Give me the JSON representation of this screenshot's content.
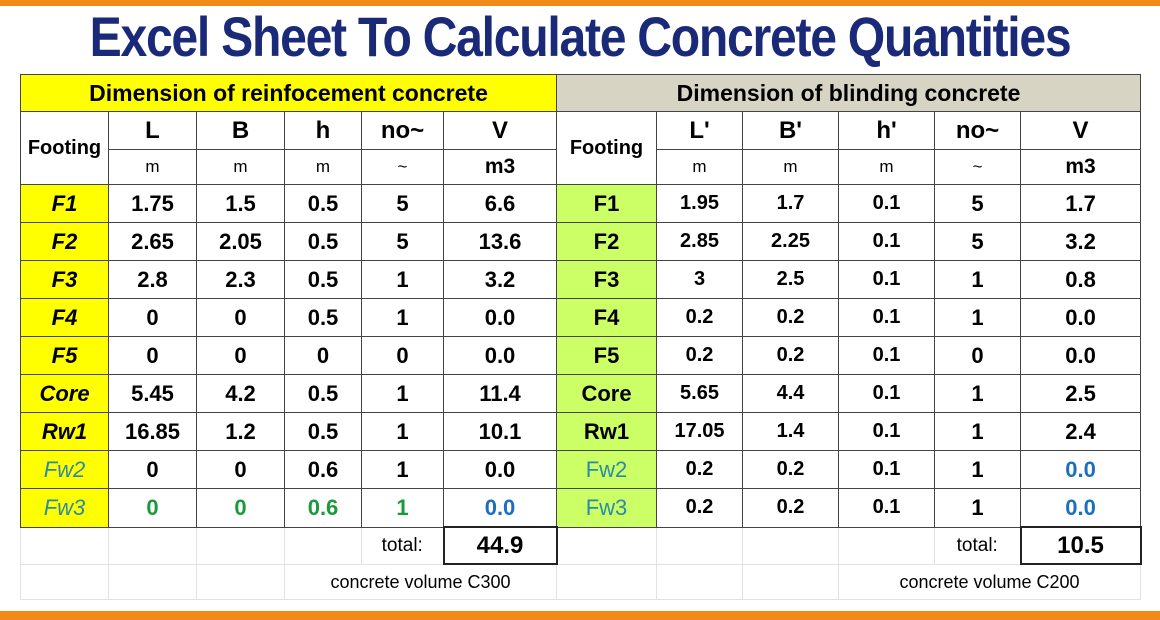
{
  "title": "Excel Sheet To Calculate Concrete Quantities",
  "left_table": {
    "header": "Dimension of reinfocement concrete",
    "row_label_header": "Footing",
    "columns": [
      "L",
      "B",
      "h",
      "no~",
      "V"
    ],
    "units": [
      "m",
      "m",
      "m",
      "~",
      "m3"
    ],
    "rows": [
      {
        "label": "F1",
        "values": [
          "1.75",
          "1.5",
          "0.5",
          "5",
          "6.6"
        ]
      },
      {
        "label": "F2",
        "values": [
          "2.65",
          "2.05",
          "0.5",
          "5",
          "13.6"
        ]
      },
      {
        "label": "F3",
        "values": [
          "2.8",
          "2.3",
          "0.5",
          "1",
          "3.2"
        ]
      },
      {
        "label": "F4",
        "values": [
          "0",
          "0",
          "0.5",
          "1",
          "0.0"
        ]
      },
      {
        "label": "F5",
        "values": [
          "0",
          "0",
          "0",
          "0",
          "0.0"
        ]
      },
      {
        "label": "Core",
        "values": [
          "5.45",
          "4.2",
          "0.5",
          "1",
          "11.4"
        ]
      },
      {
        "label": "Rw1",
        "values": [
          "16.85",
          "1.2",
          "0.5",
          "1",
          "10.1"
        ]
      },
      {
        "label": "Fw2",
        "values": [
          "0",
          "0",
          "0.6",
          "1",
          "0.0"
        ]
      },
      {
        "label": "Fw3",
        "values": [
          "0",
          "0",
          "0.6",
          "1",
          "0.0"
        ]
      }
    ],
    "total_label": "total:",
    "total_value": "44.9",
    "note": "concrete volume C300",
    "header_color": "#ffff00"
  },
  "right_table": {
    "header": "Dimension of  blinding concrete",
    "row_label_header": "Footing",
    "columns": [
      "L'",
      "B'",
      "h'",
      "no~",
      "V"
    ],
    "units": [
      "m",
      "m",
      "m",
      "~",
      "m3"
    ],
    "rows": [
      {
        "label": "F1",
        "values": [
          "1.95",
          "1.7",
          "0.1",
          "5",
          "1.7"
        ]
      },
      {
        "label": "F2",
        "values": [
          "2.85",
          "2.25",
          "0.1",
          "5",
          "3.2"
        ]
      },
      {
        "label": "F3",
        "values": [
          "3",
          "2.5",
          "0.1",
          "1",
          "0.8"
        ]
      },
      {
        "label": "F4",
        "values": [
          "0.2",
          "0.2",
          "0.1",
          "1",
          "0.0"
        ]
      },
      {
        "label": "F5",
        "values": [
          "0.2",
          "0.2",
          "0.1",
          "0",
          "0.0"
        ]
      },
      {
        "label": "Core",
        "values": [
          "5.65",
          "4.4",
          "0.1",
          "1",
          "2.5"
        ]
      },
      {
        "label": "Rw1",
        "values": [
          "17.05",
          "1.4",
          "0.1",
          "1",
          "2.4"
        ]
      },
      {
        "label": "Fw2",
        "values": [
          "0.2",
          "0.2",
          "0.1",
          "1",
          "0.0"
        ]
      },
      {
        "label": "Fw3",
        "values": [
          "0.2",
          "0.2",
          "0.1",
          "1",
          "0.0"
        ]
      }
    ],
    "total_label": "total:",
    "total_value": "10.5",
    "note": "concrete volume C200",
    "header_color": "#d8d4c4"
  },
  "colors": {
    "accent_bar": "#f28a16",
    "title_text": "#1b2a78",
    "label_yellow": "#ffff00",
    "label_green": "#ccff66",
    "blue_value": "#1a6fc0",
    "green_value": "#1a9a3a"
  }
}
